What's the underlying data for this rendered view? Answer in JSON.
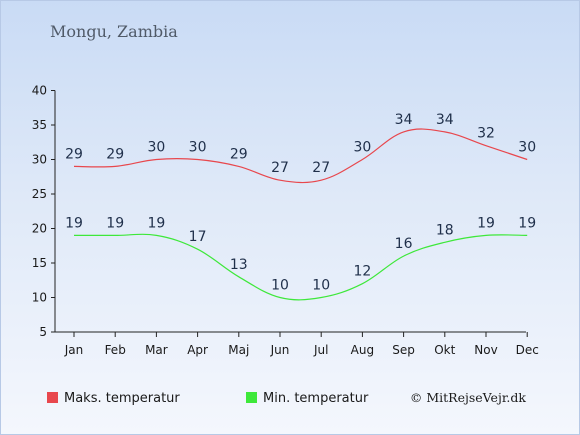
{
  "chart_data": {
    "type": "line",
    "title": "Mongu, Zambia",
    "categories": [
      "Jan",
      "Feb",
      "Mar",
      "Apr",
      "Maj",
      "Jun",
      "Jul",
      "Aug",
      "Sep",
      "Okt",
      "Nov",
      "Dec"
    ],
    "series": [
      {
        "name": "Maks. temperatur",
        "color": "#e8474d",
        "values": [
          29,
          29,
          30,
          30,
          29,
          27,
          27,
          30,
          34,
          34,
          32,
          30
        ]
      },
      {
        "name": "Min. temperatur",
        "color": "#3ee83a",
        "values": [
          19,
          19,
          19,
          17,
          13,
          10,
          10,
          12,
          16,
          18,
          19,
          19
        ]
      }
    ],
    "ylim": [
      5,
      40
    ],
    "yticks": [
      5,
      10,
      15,
      20,
      25,
      30,
      35,
      40
    ],
    "grid": false,
    "legend": "bottom"
  },
  "copyright": "© MitRejseVejr.dk"
}
